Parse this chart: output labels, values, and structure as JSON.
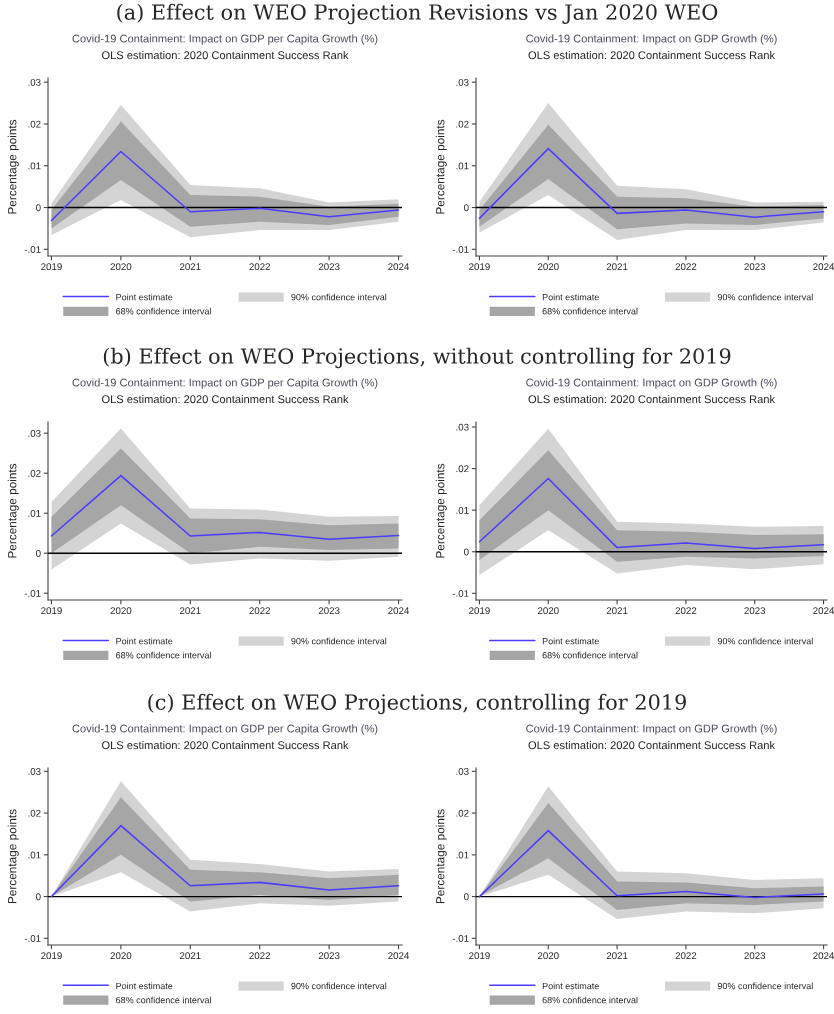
{
  "chart_data": [
    {
      "type": "line",
      "title": "Covid-19 Containment: Impact on GDP per Capita Growth (%)",
      "subtitle": "OLS estimation: 2020 Containment Success Rank",
      "ylabel": "Percentage points",
      "annotations": [
        "(a) Effect on WEO Projection Revisions vs Jan 2020 WEO"
      ],
      "x": [
        2019,
        2020,
        2021,
        2022,
        2023,
        2024
      ],
      "xlim": [
        2018.95,
        2024.05
      ],
      "xticks": [
        2019,
        2020,
        2021,
        2022,
        2023,
        2024
      ],
      "ylim": [
        -0.0116,
        0.031
      ],
      "yticks": [
        {
          "value": -0.01,
          "label": "-.01"
        },
        0,
        {
          "value": 0.01,
          "label": ".01"
        },
        {
          "value": 0.02,
          "label": ".02"
        },
        {
          "value": 0.03,
          "label": ".03"
        }
      ],
      "ref_lines": [
        {
          "axis": "y",
          "value": 0,
          "color": "#000000"
        }
      ],
      "legend": "bottom",
      "grid": false,
      "series": [
        {
          "type": "line",
          "name": "Point estimate",
          "color": "#4b3cff",
          "values": [
            -0.0031,
            0.0134,
            -0.001,
            -0.0002,
            -0.0022,
            -0.0006
          ]
        },
        {
          "name": "68% confidence interval",
          "color": "#a6a6a6",
          "values": [
            null,
            null,
            null,
            null,
            null,
            null
          ],
          "lower": [
            -0.005,
            0.0066,
            -0.0046,
            -0.0034,
            -0.0042,
            -0.0022
          ],
          "upper": [
            -0.0006,
            0.0206,
            0.003,
            0.0026,
            0.0002,
            0.0009
          ]
        },
        {
          "name": "90% confidence interval",
          "color": "#d4d4d4",
          "values": [
            null,
            null,
            null,
            null,
            null,
            null
          ],
          "lower": [
            -0.0066,
            0.0018,
            -0.0071,
            -0.0054,
            -0.0054,
            -0.0034
          ],
          "upper": [
            0.001,
            0.0246,
            0.0054,
            0.0046,
            0.0012,
            0.002
          ]
        }
      ]
    },
    {
      "type": "line",
      "title": "Covid-19 Containment: Impact on GDP Growth (%)",
      "subtitle": "OLS estimation: 2020 Containment Success Rank",
      "ylabel": "Percentage points",
      "x": [
        2019,
        2020,
        2021,
        2022,
        2023,
        2024
      ],
      "xlim": [
        2018.95,
        2024.05
      ],
      "xticks": [
        2019,
        2020,
        2021,
        2022,
        2023,
        2024
      ],
      "ylim": [
        -0.0116,
        0.031
      ],
      "yticks": [
        {
          "value": -0.01,
          "label": "-.01"
        },
        0,
        {
          "value": 0.01,
          "label": ".01"
        },
        {
          "value": 0.02,
          "label": ".02"
        },
        {
          "value": 0.03,
          "label": ".03"
        }
      ],
      "ref_lines": [
        {
          "axis": "y",
          "value": 0,
          "color": "#000000"
        }
      ],
      "legend": "bottom",
      "grid": false,
      "series": [
        {
          "type": "line",
          "name": "Point estimate",
          "color": "#4b3cff",
          "values": [
            -0.0026,
            0.0141,
            -0.0014,
            -0.0006,
            -0.0023,
            -0.001
          ]
        },
        {
          "name": "68% confidence interval",
          "color": "#a6a6a6",
          "values": [
            null,
            null,
            null,
            null,
            null,
            null
          ],
          "lower": [
            -0.0046,
            0.0068,
            -0.0052,
            -0.0038,
            -0.0042,
            -0.0026
          ],
          "upper": [
            -0.0006,
            0.0198,
            0.0026,
            0.0022,
            0.0002,
            0.0006
          ]
        },
        {
          "name": "90% confidence interval",
          "color": "#d4d4d4",
          "values": [
            null,
            null,
            null,
            null,
            null,
            null
          ],
          "lower": [
            -0.006,
            0.003,
            -0.0078,
            -0.0054,
            -0.0054,
            -0.0036
          ],
          "upper": [
            0.0014,
            0.025,
            0.0052,
            0.0044,
            0.0012,
            0.0014
          ]
        }
      ]
    },
    {
      "type": "line",
      "title": "Covid-19 Containment: Impact on GDP per Capita Growth (%)",
      "subtitle": "OLS estimation: 2020 Containment Success Rank",
      "ylabel": "Percentage points",
      "annotations": [
        "(b) Effect on WEO Projections, without controlling for 2019"
      ],
      "x": [
        2019,
        2020,
        2021,
        2022,
        2023,
        2024
      ],
      "xlim": [
        2018.95,
        2024.05
      ],
      "xticks": [
        2019,
        2020,
        2021,
        2022,
        2023,
        2024
      ],
      "ylim": [
        -0.0117,
        0.0328
      ],
      "yticks": [
        {
          "value": -0.01,
          "label": "-.01"
        },
        0,
        {
          "value": 0.01,
          "label": ".01"
        },
        {
          "value": 0.02,
          "label": ".02"
        },
        {
          "value": 0.03,
          "label": ".03"
        }
      ],
      "ref_lines": [
        {
          "axis": "y",
          "value": 0,
          "color": "#000000"
        }
      ],
      "legend": "bottom",
      "grid": false,
      "series": [
        {
          "type": "line",
          "name": "Point estimate",
          "color": "#4b3cff",
          "values": [
            0.0043,
            0.0194,
            0.0043,
            0.0052,
            0.0035,
            0.0044
          ]
        },
        {
          "name": "68% confidence interval",
          "color": "#a6a6a6",
          "values": [
            null,
            null,
            null,
            null,
            null,
            null
          ],
          "lower": [
            0.0,
            0.012,
            0.0,
            0.0016,
            0.0008,
            0.0012
          ],
          "upper": [
            0.0091,
            0.0262,
            0.0087,
            0.0085,
            0.007,
            0.0074
          ]
        },
        {
          "name": "90% confidence interval",
          "color": "#d4d4d4",
          "values": [
            null,
            null,
            null,
            null,
            null,
            null
          ],
          "lower": [
            -0.0041,
            0.0074,
            -0.0028,
            -0.0013,
            -0.0019,
            -0.0009
          ],
          "upper": [
            0.0128,
            0.0312,
            0.0112,
            0.0109,
            0.0091,
            0.0093
          ]
        }
      ]
    },
    {
      "type": "line",
      "title": "Covid-19 Containment: Impact on GDP Growth (%)",
      "subtitle": "OLS estimation: 2020 Containment Success Rank",
      "ylabel": "Percentage points",
      "x": [
        2019,
        2020,
        2021,
        2022,
        2023,
        2024
      ],
      "xlim": [
        2018.95,
        2024.05
      ],
      "xticks": [
        2019,
        2020,
        2021,
        2022,
        2023,
        2024
      ],
      "ylim": [
        -0.0116,
        0.0312
      ],
      "yticks": [
        {
          "value": -0.01,
          "label": "-.01"
        },
        0,
        {
          "value": 0.01,
          "label": ".01"
        },
        {
          "value": 0.02,
          "label": ".02"
        },
        {
          "value": 0.03,
          "label": ".03"
        }
      ],
      "ref_lines": [
        {
          "axis": "y",
          "value": 0,
          "color": "#000000"
        }
      ],
      "legend": "bottom",
      "grid": false,
      "series": [
        {
          "type": "line",
          "name": "Point estimate",
          "color": "#4b3cff",
          "values": [
            0.0024,
            0.0176,
            0.001,
            0.0021,
            0.0008,
            0.0017
          ]
        },
        {
          "name": "68% confidence interval",
          "color": "#a6a6a6",
          "values": [
            null,
            null,
            null,
            null,
            null,
            null
          ],
          "lower": [
            -0.002,
            0.01,
            -0.0024,
            -0.0012,
            -0.0016,
            -0.001
          ],
          "upper": [
            0.0076,
            0.0244,
            0.0052,
            0.0048,
            0.004,
            0.0042
          ]
        },
        {
          "name": "90% confidence interval",
          "color": "#d4d4d4",
          "values": [
            null,
            null,
            null,
            null,
            null,
            null
          ],
          "lower": [
            -0.0056,
            0.0052,
            -0.0052,
            -0.0032,
            -0.0042,
            -0.003
          ],
          "upper": [
            0.0112,
            0.0296,
            0.0072,
            0.0068,
            0.006,
            0.0062
          ]
        }
      ]
    },
    {
      "type": "line",
      "title": "Covid-19 Containment: Impact on GDP per Capita Growth (%)",
      "subtitle": "OLS estimation: 2020 Containment Success Rank",
      "ylabel": "Percentage points",
      "annotations": [
        "(c) Effect on WEO Projections, controlling for 2019"
      ],
      "x": [
        2019,
        2020,
        2021,
        2022,
        2023,
        2024
      ],
      "xlim": [
        2018.95,
        2024.05
      ],
      "xticks": [
        2019,
        2020,
        2021,
        2022,
        2023,
        2024
      ],
      "ylim": [
        -0.0116,
        0.0308
      ],
      "yticks": [
        {
          "value": -0.01,
          "label": "-.01"
        },
        0,
        {
          "value": 0.01,
          "label": ".01"
        },
        {
          "value": 0.02,
          "label": ".02"
        },
        {
          "value": 0.03,
          "label": ".03"
        }
      ],
      "ref_lines": [
        {
          "axis": "y",
          "value": 0,
          "color": "#000000"
        }
      ],
      "legend": "bottom",
      "grid": false,
      "series": [
        {
          "type": "line",
          "name": "Point estimate",
          "color": "#4b3cff",
          "values": [
            0.0,
            0.017,
            0.0026,
            0.0034,
            0.0016,
            0.0026
          ]
        },
        {
          "name": "68% confidence interval",
          "color": "#a6a6a6",
          "values": [
            null,
            null,
            null,
            null,
            null,
            null
          ],
          "lower": [
            0.0,
            0.01,
            -0.0012,
            0.0004,
            -0.0008,
            0.0004
          ],
          "upper": [
            0.0,
            0.0238,
            0.0064,
            0.0058,
            0.0044,
            0.0052
          ]
        },
        {
          "name": "90% confidence interval",
          "color": "#d4d4d4",
          "values": [
            null,
            null,
            null,
            null,
            null,
            null
          ],
          "lower": [
            0.0,
            0.0058,
            -0.0036,
            -0.0016,
            -0.0022,
            -0.0012
          ],
          "upper": [
            0.0,
            0.0276,
            0.0088,
            0.0078,
            0.006,
            0.0066
          ]
        }
      ]
    },
    {
      "type": "line",
      "title": "Covid-19 Containment: Impact on GDP Growth (%)",
      "subtitle": "OLS estimation: 2020 Containment Success Rank",
      "ylabel": "Percentage points",
      "x": [
        2019,
        2020,
        2021,
        2022,
        2023,
        2024
      ],
      "xlim": [
        2018.95,
        2024.05
      ],
      "xticks": [
        2019,
        2020,
        2021,
        2022,
        2023,
        2024
      ],
      "ylim": [
        -0.0116,
        0.0308
      ],
      "yticks": [
        {
          "value": -0.01,
          "label": "-.01"
        },
        0,
        {
          "value": 0.01,
          "label": ".01"
        },
        {
          "value": 0.02,
          "label": ".02"
        },
        {
          "value": 0.03,
          "label": ".03"
        }
      ],
      "ref_lines": [
        {
          "axis": "y",
          "value": 0,
          "color": "#000000"
        }
      ],
      "legend": "bottom",
      "grid": false,
      "series": [
        {
          "type": "line",
          "name": "Point estimate",
          "color": "#4b3cff",
          "values": [
            0.0,
            0.0158,
            0.0002,
            0.0012,
            -0.0002,
            0.0006
          ]
        },
        {
          "name": "68% confidence interval",
          "color": "#a6a6a6",
          "values": [
            null,
            null,
            null,
            null,
            null,
            null
          ],
          "lower": [
            0.0,
            0.0092,
            -0.0032,
            -0.0016,
            -0.002,
            -0.0012
          ],
          "upper": [
            0.0,
            0.0224,
            0.0036,
            0.0034,
            0.002,
            0.0024
          ]
        },
        {
          "name": "90% confidence interval",
          "color": "#d4d4d4",
          "values": [
            null,
            null,
            null,
            null,
            null,
            null
          ],
          "lower": [
            0.0,
            0.0052,
            -0.0054,
            -0.0036,
            -0.004,
            -0.0028
          ],
          "upper": [
            0.0,
            0.0264,
            0.006,
            0.0056,
            0.004,
            0.0044
          ]
        }
      ]
    }
  ]
}
